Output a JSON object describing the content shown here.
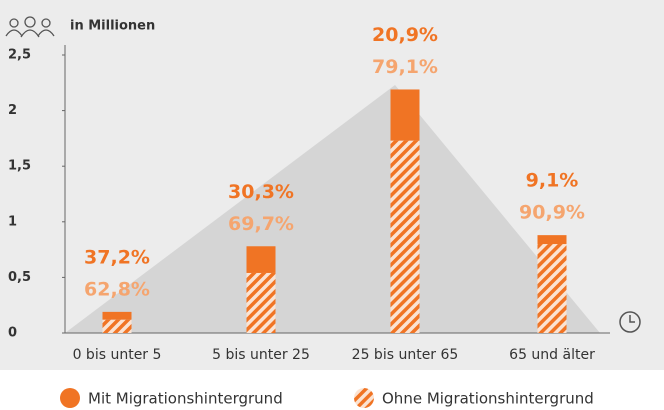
{
  "chart_data": {
    "type": "bar",
    "stacked": true,
    "y_label": "in Millionen",
    "categories": [
      "0 bis unter 5",
      "5 bis unter 25",
      "25 bis unter 65",
      "65 und älter"
    ],
    "series": [
      {
        "name": "Ohne Migrationshintergrund",
        "color": "#f07424",
        "hatched": true,
        "values": [
          0.12,
          0.54,
          1.73,
          0.8
        ],
        "value_labels": [
          "62,8%",
          "69,7%",
          "79,1%",
          "90,9%"
        ]
      },
      {
        "name": "Mit Migrationshintergrund",
        "color": "#f07424",
        "hatched": false,
        "values": [
          0.07,
          0.24,
          0.46,
          0.08
        ],
        "value_labels": [
          "37,2%",
          "30,3%",
          "20,9%",
          "9,1%"
        ]
      }
    ],
    "ylim": [
      0,
      2.5
    ],
    "yticks": [
      0,
      {
        "value": 0.5,
        "label": "0,5"
      },
      1,
      {
        "value": 1.5,
        "label": "1,5"
      },
      2,
      {
        "value": 2.5,
        "label": "2,5"
      }
    ]
  }
}
